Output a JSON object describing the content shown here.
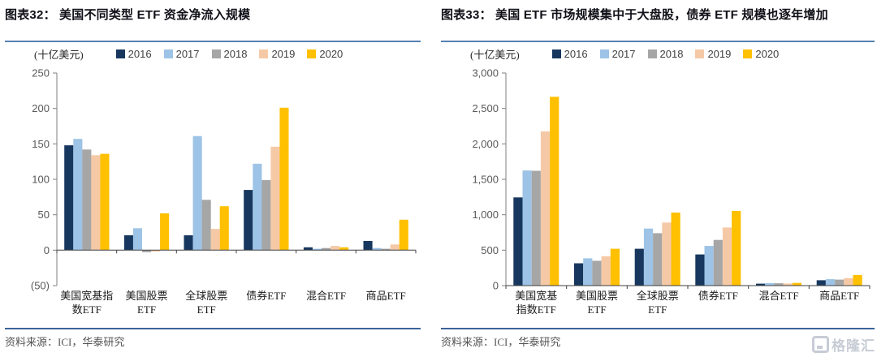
{
  "watermark": {
    "text": "格隆汇"
  },
  "chart_data": [
    {
      "type": "bar",
      "title": "图表32：  美国不同类型 ETF 资金净流入规模",
      "unit": "(十亿美元)",
      "source": "资料来源：ICI，华泰研究",
      "xlabel": "",
      "ylabel": "十亿美元",
      "grid": false,
      "legend_position": "top",
      "categories": [
        "美国宽基指数ETF",
        "美国股票ETF",
        "全球股票ETF",
        "债券ETF",
        "混合ETF",
        "商品ETF"
      ],
      "category_lines": [
        [
          "美国宽基指",
          "数ETF"
        ],
        [
          "美国股票",
          "ETF"
        ],
        [
          "全球股票",
          "ETF"
        ],
        [
          "债券ETF"
        ],
        [
          "混合ETF"
        ],
        [
          "商品ETF"
        ]
      ],
      "series": [
        {
          "name": "2016",
          "color": "#17375E",
          "values": [
            148,
            21,
            21,
            85,
            4,
            13
          ]
        },
        {
          "name": "2017",
          "color": "#9DC3E6",
          "values": [
            157,
            31,
            161,
            122,
            2,
            3
          ]
        },
        {
          "name": "2018",
          "color": "#A6A6A6",
          "values": [
            142,
            -3,
            71,
            99,
            3,
            2
          ]
        },
        {
          "name": "2019",
          "color": "#F5C9A6",
          "values": [
            134,
            -2,
            30,
            146,
            6,
            8
          ]
        },
        {
          "name": "2020",
          "color": "#FFC000",
          "values": [
            136,
            52,
            62,
            201,
            4,
            43
          ]
        }
      ],
      "ylim": [
        -50,
        250
      ],
      "yticks": [
        {
          "value": 250,
          "label": "250"
        },
        {
          "value": 200,
          "label": "200"
        },
        {
          "value": 150,
          "label": "150"
        },
        {
          "value": 100,
          "label": "100"
        },
        {
          "value": 50,
          "label": "50"
        },
        {
          "value": 0,
          "label": "0"
        },
        {
          "value": -50,
          "label": "(50)"
        }
      ]
    },
    {
      "type": "bar",
      "title": "图表33：  美国 ETF 市场规模集中于大盘股，债券 ETF 规模也逐年增加",
      "unit": "(十亿美元)",
      "source": "资料来源：ICI，华泰研究",
      "xlabel": "",
      "ylabel": "十亿美元",
      "grid": false,
      "legend_position": "top",
      "categories": [
        "美国宽基指数ETF",
        "美国股票ETF",
        "全球股票ETF",
        "债券ETF",
        "混合ETF",
        "商品ETF"
      ],
      "category_lines": [
        [
          "美国宽基",
          "指数ETF"
        ],
        [
          "美国股票",
          "ETF"
        ],
        [
          "全球股票",
          "ETF"
        ],
        [
          "债券ETF"
        ],
        [
          "混合ETF"
        ],
        [
          "商品ETF"
        ]
      ],
      "series": [
        {
          "name": "2016",
          "color": "#17375E",
          "values": [
            1245,
            315,
            520,
            440,
            28,
            75
          ]
        },
        {
          "name": "2017",
          "color": "#9DC3E6",
          "values": [
            1625,
            385,
            805,
            560,
            35,
            90
          ]
        },
        {
          "name": "2018",
          "color": "#A6A6A6",
          "values": [
            1620,
            350,
            740,
            645,
            33,
            85
          ]
        },
        {
          "name": "2019",
          "color": "#F5C9A6",
          "values": [
            2175,
            415,
            890,
            820,
            30,
            105
          ]
        },
        {
          "name": "2020",
          "color": "#FFC000",
          "values": [
            2665,
            520,
            1030,
            1055,
            38,
            150
          ]
        }
      ],
      "ylim": [
        0,
        3000
      ],
      "yticks": [
        {
          "value": 3000,
          "label": "3,000"
        },
        {
          "value": 2500,
          "label": "2,500"
        },
        {
          "value": 2000,
          "label": "2,000"
        },
        {
          "value": 1500,
          "label": "1,500"
        },
        {
          "value": 1000,
          "label": "1,000"
        },
        {
          "value": 500,
          "label": "500"
        },
        {
          "value": 0,
          "label": "0"
        }
      ]
    }
  ]
}
